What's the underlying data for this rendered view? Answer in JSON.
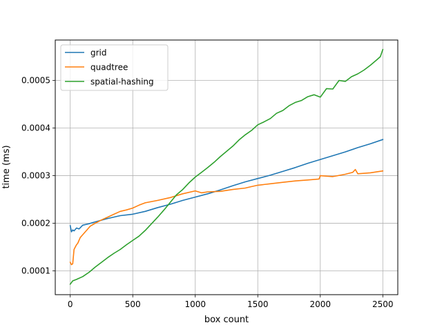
{
  "chart_data": {
    "type": "line",
    "title": "",
    "xlabel": "box count",
    "ylabel": "time (ms)",
    "xlim": [
      -120,
      2620
    ],
    "ylim": [
      5e-05,
      0.000585
    ],
    "xticks": [
      0,
      500,
      1000,
      1500,
      2000,
      2500
    ],
    "xtick_labels": [
      "0",
      "500",
      "1000",
      "1500",
      "2000",
      "2500"
    ],
    "yticks": [
      0.0001,
      0.0002,
      0.0003,
      0.0004,
      0.0005
    ],
    "ytick_labels": [
      "0.0001",
      "0.0002",
      "0.0003",
      "0.0004",
      "0.0005"
    ],
    "grid": true,
    "legend": "top-left",
    "series": [
      {
        "name": "grid",
        "color": "#1f77b4",
        "x": [
          0,
          10,
          20,
          30,
          50,
          70,
          100,
          150,
          200,
          300,
          400,
          500,
          600,
          700,
          800,
          900,
          1000,
          1100,
          1200,
          1300,
          1400,
          1500,
          1600,
          1700,
          1800,
          1900,
          2000,
          2100,
          2200,
          2300,
          2400,
          2500
        ],
        "values": [
          0.000195,
          0.000182,
          0.000186,
          0.000184,
          0.00019,
          0.000188,
          0.000196,
          0.000199,
          0.000203,
          0.00021,
          0.000216,
          0.000219,
          0.000225,
          0.000233,
          0.00024,
          0.000248,
          0.000255,
          0.000262,
          0.00027,
          0.000279,
          0.000287,
          0.000294,
          0.000301,
          0.000309,
          0.000317,
          0.000326,
          0.000334,
          0.000342,
          0.00035,
          0.000359,
          0.000367,
          0.000376
        ]
      },
      {
        "name": "quadtree",
        "color": "#ff7f0e",
        "x": [
          0,
          10,
          20,
          30,
          40,
          50,
          60,
          80,
          100,
          130,
          160,
          200,
          250,
          300,
          350,
          400,
          450,
          500,
          550,
          600,
          700,
          800,
          900,
          1000,
          1050,
          1100,
          1200,
          1300,
          1400,
          1450,
          1500,
          1600,
          1700,
          1800,
          1900,
          1990,
          2000,
          2100,
          2200,
          2260,
          2280,
          2300,
          2400,
          2500
        ],
        "values": [
          0.000118,
          0.000113,
          0.000115,
          0.000145,
          0.00015,
          0.000155,
          0.000158,
          0.00017,
          0.000176,
          0.000185,
          0.000194,
          0.0002,
          0.000207,
          0.000213,
          0.000219,
          0.000225,
          0.000228,
          0.000232,
          0.000238,
          0.000243,
          0.000248,
          0.000254,
          0.000262,
          0.000268,
          0.000264,
          0.000266,
          0.000267,
          0.000271,
          0.000274,
          0.000277,
          0.00028,
          0.000283,
          0.000286,
          0.000289,
          0.000291,
          0.000293,
          0.0003,
          0.000298,
          0.000303,
          0.000307,
          0.000313,
          0.000304,
          0.000306,
          0.00031
        ]
      },
      {
        "name": "spatial-hashing",
        "color": "#2ca02c",
        "x": [
          0,
          20,
          50,
          100,
          150,
          200,
          250,
          300,
          350,
          400,
          450,
          500,
          550,
          600,
          650,
          700,
          750,
          800,
          850,
          900,
          950,
          1000,
          1050,
          1100,
          1150,
          1200,
          1250,
          1300,
          1350,
          1400,
          1450,
          1500,
          1550,
          1600,
          1650,
          1700,
          1750,
          1800,
          1850,
          1900,
          1950,
          2000,
          2050,
          2100,
          2150,
          2200,
          2250,
          2300,
          2350,
          2400,
          2450,
          2480,
          2500
        ],
        "values": [
          7.2e-05,
          7.9e-05,
          8.2e-05,
          8.8e-05,
          9.7e-05,
          0.000108,
          0.000118,
          0.000128,
          0.000137,
          0.000145,
          0.000155,
          0.000164,
          0.000173,
          0.000185,
          0.000199,
          0.000213,
          0.000228,
          0.000244,
          0.00026,
          0.000271,
          0.000285,
          0.000297,
          0.000307,
          0.000317,
          0.000328,
          0.00034,
          0.000351,
          0.000362,
          0.000375,
          0.000386,
          0.000395,
          0.000407,
          0.000413,
          0.00042,
          0.000431,
          0.000437,
          0.000447,
          0.000454,
          0.000458,
          0.000466,
          0.00047,
          0.000465,
          0.000483,
          0.000482,
          0.0005,
          0.000498,
          0.000508,
          0.000514,
          0.000522,
          0.000532,
          0.000543,
          0.00055,
          0.000565
        ]
      }
    ]
  }
}
